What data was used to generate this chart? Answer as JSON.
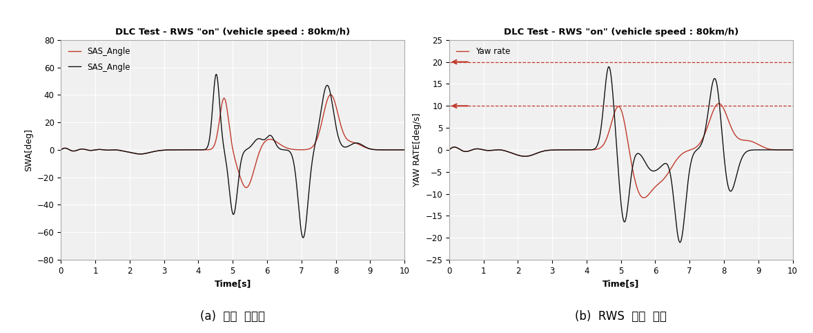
{
  "title": "DLC Test - RWS \"on\" (vehicle speed : 80km/h)",
  "left_ylabel": "SWA[deg]",
  "right_ylabel": "YAW RATE[deg/s]",
  "xlabel": "Time[s]",
  "xlim": [
    0,
    10
  ],
  "left_ylim": [
    -80,
    80
  ],
  "right_ylim": [
    -25,
    25
  ],
  "left_yticks": [
    -80,
    -60,
    -40,
    -20,
    0,
    20,
    40,
    60,
    80
  ],
  "right_yticks": [
    -25,
    -20,
    -15,
    -10,
    -5,
    0,
    5,
    10,
    15,
    20,
    25
  ],
  "xticks": [
    0,
    1,
    2,
    3,
    4,
    5,
    6,
    7,
    8,
    9,
    10
  ],
  "caption_left": "(a)  입력  조향각",
  "caption_right": "(b)  RWS  동작  결과",
  "legend_left": [
    "SAS_Angle",
    "SAS_Angle"
  ],
  "legend_right": [
    "Yaw rate"
  ],
  "hline_y1": 20,
  "hline_y2": 10,
  "color_red": "#c0392b",
  "color_black": "#111111",
  "bg_color": "#f0f0f0",
  "grid_color": "#ffffff"
}
